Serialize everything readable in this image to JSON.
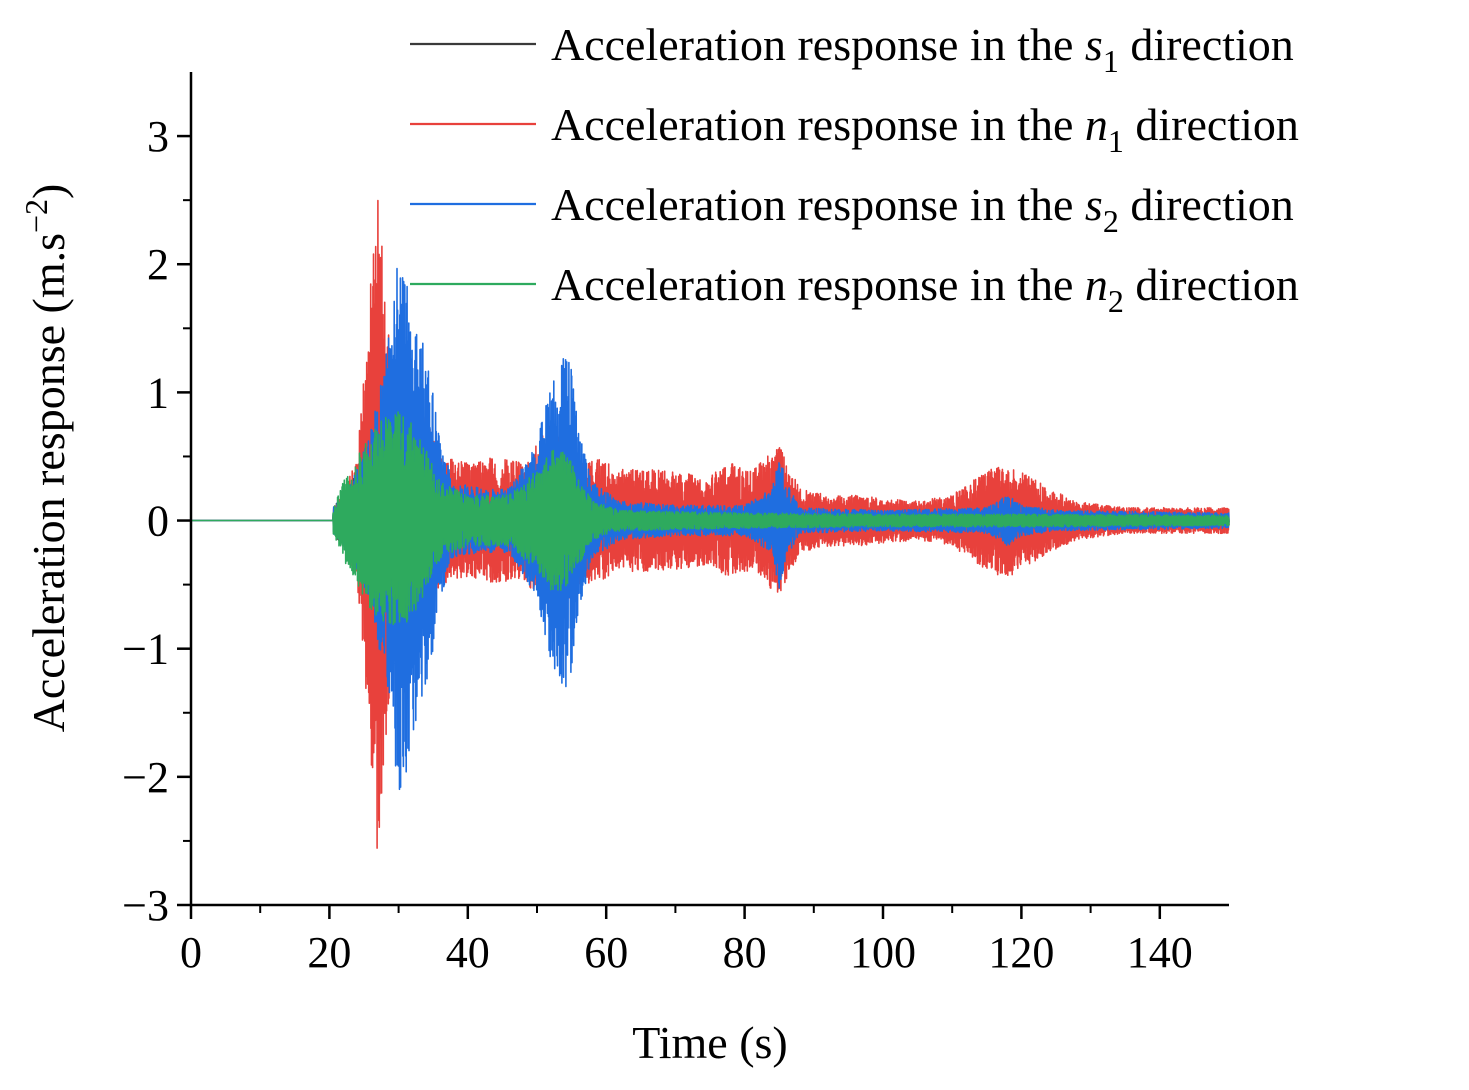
{
  "chart_data": {
    "type": "line",
    "title": "",
    "xlabel": "Time (s)",
    "ylabel": {
      "prefix": "Acceleration response (m.s",
      "sup": "−2",
      "suffix": ")"
    },
    "xlim": [
      0,
      150
    ],
    "ylim": [
      -3,
      3.5
    ],
    "xticks": [
      0,
      20,
      40,
      60,
      80,
      100,
      120,
      140
    ],
    "xtick_labels": [
      "0",
      "20",
      "40",
      "60",
      "80",
      "100",
      "120",
      "140"
    ],
    "yticks": [
      -3,
      -2,
      -1,
      0,
      1,
      2,
      3
    ],
    "ytick_labels": [
      "−3",
      "−2",
      "−1",
      "0",
      "1",
      "2",
      "3"
    ],
    "grid": false,
    "legend_position": "top-right",
    "onset_time": 20.5,
    "series": [
      {
        "name": "Acceleration response in the s1 direction",
        "legend": {
          "prefix": "Acceleration response in the ",
          "var": "s",
          "sub": "1",
          "suffix": " direction"
        },
        "color": "#3a3a3a",
        "envelope": [
          [
            20.5,
            0.1
          ],
          [
            22,
            0.2
          ],
          [
            24,
            0.4
          ],
          [
            26,
            0.45
          ],
          [
            28,
            0.5
          ],
          [
            30,
            0.55
          ],
          [
            32,
            0.5
          ],
          [
            34,
            0.4
          ],
          [
            36,
            0.25
          ],
          [
            40,
            0.15
          ],
          [
            46,
            0.12
          ],
          [
            50,
            0.2
          ],
          [
            53,
            0.35
          ],
          [
            55,
            0.3
          ],
          [
            58,
            0.15
          ],
          [
            62,
            0.08
          ],
          [
            80,
            0.05
          ],
          [
            100,
            0.04
          ],
          [
            120,
            0.04
          ],
          [
            150,
            0.03
          ]
        ]
      },
      {
        "name": "Acceleration response in the n1 direction",
        "legend": {
          "prefix": "Acceleration response in the ",
          "var": "n",
          "sub": "1",
          "suffix": " direction"
        },
        "color": "#e8413c",
        "envelope": [
          [
            20.5,
            0.1
          ],
          [
            22,
            0.2
          ],
          [
            24,
            0.5
          ],
          [
            25.5,
            1.5
          ],
          [
            27,
            2.65
          ],
          [
            28,
            1.8
          ],
          [
            29,
            1.2
          ],
          [
            30,
            1.1
          ],
          [
            32,
            0.9
          ],
          [
            34,
            0.8
          ],
          [
            36,
            0.5
          ],
          [
            40,
            0.45
          ],
          [
            44,
            0.5
          ],
          [
            48,
            0.45
          ],
          [
            50,
            0.6
          ],
          [
            52,
            0.8
          ],
          [
            54,
            0.7
          ],
          [
            56,
            0.5
          ],
          [
            58,
            0.5
          ],
          [
            62,
            0.4
          ],
          [
            66,
            0.4
          ],
          [
            70,
            0.38
          ],
          [
            75,
            0.35
          ],
          [
            78,
            0.45
          ],
          [
            81,
            0.38
          ],
          [
            85,
            0.6
          ],
          [
            88,
            0.25
          ],
          [
            92,
            0.2
          ],
          [
            96,
            0.2
          ],
          [
            100,
            0.18
          ],
          [
            105,
            0.15
          ],
          [
            110,
            0.2
          ],
          [
            114,
            0.35
          ],
          [
            116,
            0.42
          ],
          [
            118,
            0.45
          ],
          [
            121,
            0.35
          ],
          [
            124,
            0.25
          ],
          [
            128,
            0.15
          ],
          [
            135,
            0.1
          ],
          [
            150,
            0.1
          ]
        ]
      },
      {
        "name": "Acceleration response in the s2 direction",
        "legend": {
          "prefix": "Acceleration response in the ",
          "var": "s",
          "sub": "2",
          "suffix": " direction"
        },
        "color": "#1f6ee0",
        "envelope": [
          [
            20.5,
            0.1
          ],
          [
            22,
            0.2
          ],
          [
            24,
            0.4
          ],
          [
            26,
            0.7
          ],
          [
            28,
            1.2
          ],
          [
            29.5,
            1.9
          ],
          [
            30.5,
            2.3
          ],
          [
            31.5,
            1.8
          ],
          [
            33,
            1.5
          ],
          [
            34.5,
            1.2
          ],
          [
            36,
            0.6
          ],
          [
            38,
            0.3
          ],
          [
            42,
            0.25
          ],
          [
            46,
            0.25
          ],
          [
            50,
            0.6
          ],
          [
            52,
            1.1
          ],
          [
            54,
            1.35
          ],
          [
            55,
            1.2
          ],
          [
            56,
            0.7
          ],
          [
            58,
            0.3
          ],
          [
            62,
            0.15
          ],
          [
            70,
            0.12
          ],
          [
            80,
            0.12
          ],
          [
            84,
            0.25
          ],
          [
            85,
            0.55
          ],
          [
            86,
            0.3
          ],
          [
            88,
            0.1
          ],
          [
            100,
            0.08
          ],
          [
            115,
            0.1
          ],
          [
            118,
            0.2
          ],
          [
            120,
            0.12
          ],
          [
            125,
            0.08
          ],
          [
            150,
            0.06
          ]
        ]
      },
      {
        "name": "Acceleration response in the n2 direction",
        "legend": {
          "prefix": "Acceleration response in the ",
          "var": "n",
          "sub": "2",
          "suffix": " direction"
        },
        "color": "#2eaa5e",
        "envelope": [
          [
            20.5,
            0.1
          ],
          [
            22,
            0.3
          ],
          [
            24,
            0.5
          ],
          [
            26,
            0.7
          ],
          [
            28,
            0.8
          ],
          [
            30,
            0.85
          ],
          [
            32,
            0.75
          ],
          [
            34,
            0.55
          ],
          [
            36,
            0.3
          ],
          [
            40,
            0.2
          ],
          [
            46,
            0.2
          ],
          [
            50,
            0.4
          ],
          [
            52,
            0.55
          ],
          [
            54,
            0.55
          ],
          [
            56,
            0.35
          ],
          [
            58,
            0.15
          ],
          [
            62,
            0.08
          ],
          [
            80,
            0.06
          ],
          [
            100,
            0.05
          ],
          [
            120,
            0.05
          ],
          [
            150,
            0.04
          ]
        ]
      }
    ]
  }
}
